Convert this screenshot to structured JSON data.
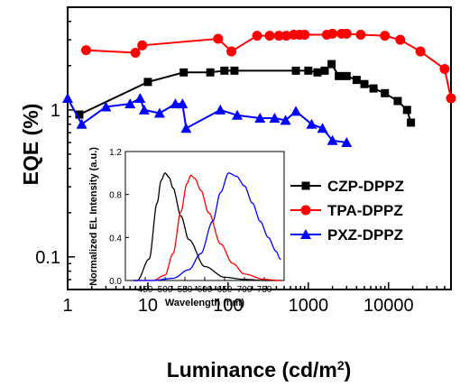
{
  "chart_data": [
    {
      "type": "line",
      "xlabel": "Luminance (cd/m²)",
      "ylabel": "EQE (%)",
      "xscale": "log",
      "yscale": "log",
      "xlim": [
        1,
        60000
      ],
      "ylim": [
        0.06,
        5
      ],
      "x_ticks": [
        1,
        10,
        100,
        1000,
        10000
      ],
      "x_tick_labels": [
        "1",
        "10",
        "100",
        "1000",
        "10000"
      ],
      "y_ticks": [
        0.1,
        1
      ],
      "y_tick_labels": [
        "0.1",
        "1"
      ],
      "grid": false,
      "legend_position": "right",
      "series": [
        {
          "name": "CZP-DPPZ",
          "color": "#000000",
          "marker": "square",
          "points": [
            [
              1.4,
              0.93
            ],
            [
              10,
              1.55
            ],
            [
              28,
              1.8
            ],
            [
              60,
              1.8
            ],
            [
              90,
              1.85
            ],
            [
              120,
              1.85
            ],
            [
              700,
              1.85
            ],
            [
              1000,
              1.85
            ],
            [
              1300,
              1.8
            ],
            [
              1600,
              1.85
            ],
            [
              1950,
              2.05
            ],
            [
              2400,
              1.7
            ],
            [
              3000,
              1.7
            ],
            [
              4000,
              1.6
            ],
            [
              5000,
              1.5
            ],
            [
              6500,
              1.4
            ],
            [
              9000,
              1.3
            ],
            [
              13000,
              1.15
            ],
            [
              17000,
              1.0
            ],
            [
              19000,
              0.82
            ]
          ]
        },
        {
          "name": "TPA-DPPZ",
          "color": "#ff0000",
          "marker": "circle",
          "points": [
            [
              1.7,
              2.55
            ],
            [
              7,
              2.45
            ],
            [
              8.5,
              2.75
            ],
            [
              75,
              3.05
            ],
            [
              110,
              2.5
            ],
            [
              230,
              3.2
            ],
            [
              330,
              3.2
            ],
            [
              430,
              3.2
            ],
            [
              530,
              3.2
            ],
            [
              660,
              3.25
            ],
            [
              780,
              3.25
            ],
            [
              900,
              3.25
            ],
            [
              1700,
              3.25
            ],
            [
              2000,
              3.3
            ],
            [
              2600,
              3.3
            ],
            [
              3000,
              3.3
            ],
            [
              4500,
              3.25
            ],
            [
              9000,
              3.2
            ],
            [
              14000,
              3.0
            ],
            [
              25000,
              2.5
            ],
            [
              50000,
              1.9
            ],
            [
              60000,
              1.2
            ]
          ]
        },
        {
          "name": "PXZ-DPPZ",
          "color": "#0000ff",
          "marker": "triangle",
          "points": [
            [
              1,
              1.2
            ],
            [
              1.5,
              0.8
            ],
            [
              3,
              1.05
            ],
            [
              6,
              1.1
            ],
            [
              8,
              1.2
            ],
            [
              9,
              1.0
            ],
            [
              14,
              0.95
            ],
            [
              22,
              1.1
            ],
            [
              27,
              1.1
            ],
            [
              30,
              0.75
            ],
            [
              80,
              1.0
            ],
            [
              130,
              0.92
            ],
            [
              250,
              0.88
            ],
            [
              380,
              0.88
            ],
            [
              520,
              0.85
            ],
            [
              700,
              0.98
            ],
            [
              1100,
              0.8
            ],
            [
              1500,
              0.75
            ],
            [
              2000,
              0.62
            ],
            [
              3000,
              0.6
            ]
          ]
        }
      ]
    },
    {
      "type": "line",
      "xlabel": "Wavelength (nm)",
      "ylabel": "Normalized EL Intensity (a.u.)",
      "xlim": [
        400,
        800
      ],
      "ylim": [
        0,
        1.2
      ],
      "x_ticks": [
        450,
        500,
        550,
        600,
        650,
        700,
        750
      ],
      "x_tick_labels": [
        "450",
        "500",
        "550",
        "600",
        "650",
        "700",
        "750"
      ],
      "y_ticks": [
        0,
        0.4,
        0.8,
        1.2
      ],
      "y_tick_labels": [
        "0.0",
        "0.4",
        "0.8",
        "1.2"
      ],
      "series": [
        {
          "color": "#000000",
          "peak": 500,
          "width": 28,
          "values_x": [
            430,
            460,
            480,
            490,
            500,
            510,
            520,
            540,
            560,
            600,
            650,
            700,
            750,
            790
          ],
          "values_y": [
            0.0,
            0.2,
            0.72,
            0.93,
            1.0,
            0.96,
            0.86,
            0.6,
            0.38,
            0.13,
            0.03,
            0.01,
            0.0,
            0.0
          ]
        },
        {
          "color": "#ff0000",
          "peak": 565,
          "width": 38,
          "values_x": [
            470,
            500,
            520,
            540,
            555,
            565,
            575,
            590,
            610,
            640,
            670,
            700,
            750,
            790
          ],
          "values_y": [
            0.0,
            0.05,
            0.25,
            0.64,
            0.9,
            0.98,
            0.95,
            0.84,
            0.63,
            0.34,
            0.16,
            0.06,
            0.01,
            0.0
          ]
        },
        {
          "color": "#0000ff",
          "peak": 660,
          "width": 55,
          "values_x": [
            470,
            520,
            560,
            590,
            620,
            640,
            660,
            680,
            700,
            720,
            740,
            760,
            780,
            790
          ],
          "values_y": [
            0.0,
            0.02,
            0.1,
            0.25,
            0.55,
            0.82,
            1.0,
            0.97,
            0.88,
            0.72,
            0.55,
            0.4,
            0.27,
            0.2
          ]
        }
      ]
    }
  ]
}
